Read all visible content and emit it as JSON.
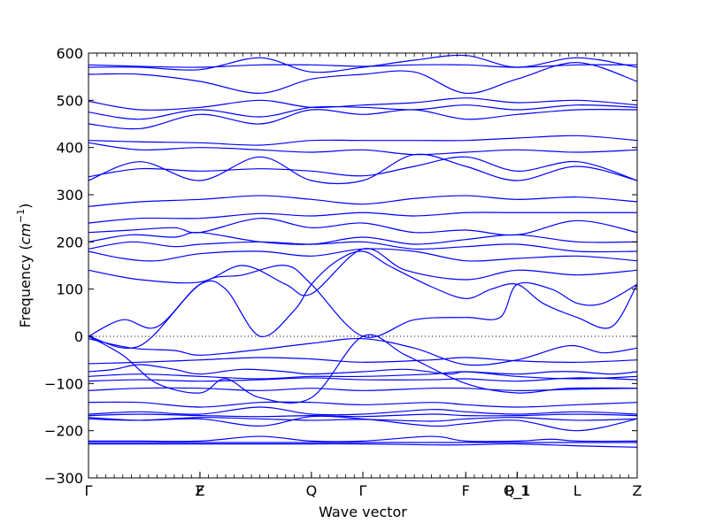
{
  "chart_data": {
    "type": "line",
    "title": "",
    "xlabel": "Wave vector",
    "ylabel_text": "Frequency (",
    "ylabel_unit": "cm",
    "ylabel_exp": "−1",
    "ylabel_close": ")",
    "ylim": [
      -300,
      600
    ],
    "yticks": [
      -300,
      -200,
      -100,
      0,
      100,
      200,
      300,
      400,
      500,
      600
    ],
    "ytick_labels": [
      "−300",
      "−200",
      "−100",
      "0",
      "100",
      "200",
      "300",
      "400",
      "500",
      "600"
    ],
    "xlim": [
      0,
      6.4
    ],
    "high_symmetry_points": [
      {
        "label": "Γ",
        "x": 0.0
      },
      {
        "label": "F",
        "x": 1.3
      },
      {
        "label": "Z",
        "x": 1.3
      },
      {
        "label": "Q",
        "x": 2.6
      },
      {
        "label": "Γ",
        "x": 3.2
      },
      {
        "label": "F",
        "x": 4.4
      },
      {
        "label": "Q_1",
        "x": 5.0
      },
      {
        "label": "P_1",
        "x": 5.0
      },
      {
        "label": "L",
        "x": 5.7
      },
      {
        "label": "Z",
        "x": 6.4
      }
    ],
    "line_color": "#0000ff",
    "zero_line": true,
    "series_description_note": "",
    "series": [
      {
        "x": [
          0,
          1.3,
          2.6,
          3.2,
          4.4,
          5.0,
          5.7,
          6.4
        ],
        "y": [
          -225,
          -225,
          -225,
          -225,
          -225,
          -225,
          -225,
          -225
        ]
      },
      {
        "x": [
          0,
          0.6,
          1.3,
          2.0,
          2.6,
          3.2,
          4.0,
          4.4,
          5.0,
          5.4,
          5.7,
          6.4
        ],
        "y": [
          -222,
          -222,
          -222,
          -212,
          -222,
          -222,
          -212,
          -222,
          -222,
          -218,
          -222,
          -222
        ]
      },
      {
        "x": [
          0,
          0.6,
          1.3,
          2.0,
          2.6,
          3.2,
          4.0,
          4.4,
          5.0,
          5.7,
          6.4
        ],
        "y": [
          -228,
          -228,
          -228,
          -228,
          -228,
          -228,
          -230,
          -230,
          -228,
          -232,
          -235
        ]
      },
      {
        "x": [
          0,
          0.6,
          1.3,
          2.0,
          2.6,
          3.2,
          4.0,
          4.4,
          5.0,
          5.7,
          6.4
        ],
        "y": [
          -172,
          -178,
          -175,
          -190,
          -170,
          -175,
          -190,
          -185,
          -178,
          -200,
          -175
        ]
      },
      {
        "x": [
          0,
          0.6,
          1.3,
          2.0,
          2.6,
          3.2,
          4.0,
          4.4,
          5.0,
          5.7,
          6.4
        ],
        "y": [
          -168,
          -165,
          -168,
          -170,
          -168,
          -170,
          -165,
          -168,
          -168,
          -165,
          -168
        ]
      },
      {
        "x": [
          0,
          0.6,
          1.3,
          2.0,
          2.6,
          3.2,
          4.0,
          4.4,
          5.0,
          5.7,
          6.4
        ],
        "y": [
          -175,
          -178,
          -172,
          -175,
          -178,
          -176,
          -180,
          -175,
          -172,
          -178,
          -175
        ]
      },
      {
        "x": [
          0,
          0.6,
          1.3,
          2.0,
          2.6,
          3.2,
          4.0,
          4.4,
          5.0,
          5.7,
          6.4
        ],
        "y": [
          -165,
          -160,
          -165,
          -150,
          -165,
          -165,
          -155,
          -160,
          -165,
          -160,
          -165
        ]
      },
      {
        "x": [
          0,
          0.6,
          1.3,
          2.0,
          2.6,
          3.2,
          4.0,
          4.4,
          5.0,
          5.7,
          6.4
        ],
        "y": [
          -140,
          -140,
          -150,
          -140,
          -140,
          -145,
          -140,
          -145,
          -150,
          -145,
          -140
        ]
      },
      {
        "x": [
          0,
          0.6,
          1.3,
          2.0,
          2.6,
          3.2,
          4.0,
          4.4,
          5.0,
          5.7,
          6.4
        ],
        "y": [
          -115,
          -110,
          -110,
          -115,
          -110,
          -115,
          -110,
          -110,
          -115,
          -112,
          -110
        ]
      },
      {
        "x": [
          0,
          0.6,
          1.3,
          2.0,
          2.6,
          3.2,
          4.0,
          4.4,
          5.0,
          5.7,
          6.4
        ],
        "y": [
          -95,
          -92,
          -95,
          -92,
          -88,
          -92,
          -92,
          -90,
          -95,
          -88,
          -92
        ]
      },
      {
        "x": [
          0,
          0.6,
          1.3,
          2.0,
          2.6,
          3.2,
          4.0,
          4.4,
          5.0,
          5.7,
          6.4
        ],
        "y": [
          -85,
          -80,
          -85,
          -90,
          -85,
          -85,
          -80,
          -75,
          -85,
          -90,
          -85
        ]
      },
      {
        "x": [
          0,
          0.3,
          0.6,
          1.0,
          1.3,
          1.8,
          2.3,
          2.6,
          3.2,
          3.7,
          4.2,
          4.4,
          5.0,
          5.4,
          5.7,
          6.1,
          6.4
        ],
        "y": [
          -75,
          -70,
          -60,
          -70,
          -80,
          -70,
          -75,
          -80,
          -75,
          -70,
          -80,
          -75,
          -80,
          -75,
          -75,
          -80,
          -75
        ]
      },
      {
        "x": [
          0,
          0.6,
          1.3,
          2.0,
          2.6,
          3.2,
          4.0,
          4.4,
          5.0,
          5.7,
          6.4
        ],
        "y": [
          -58,
          -55,
          -50,
          -45,
          -48,
          -55,
          -50,
          -45,
          -52,
          -55,
          -50
        ]
      },
      {
        "x": [
          0,
          0.5,
          1.0,
          1.3,
          1.9,
          2.6,
          3.2,
          3.8,
          4.4,
          5.0,
          5.6,
          6.0,
          6.4
        ],
        "y": [
          -5,
          -25,
          -30,
          -40,
          -30,
          -15,
          -5,
          -25,
          -60,
          -50,
          -20,
          -35,
          -25
        ]
      },
      {
        "x": [
          0,
          0.4,
          0.8,
          1.3,
          1.6,
          2.0,
          2.4,
          2.6,
          2.9,
          3.2,
          3.5,
          4.0,
          4.4,
          4.7,
          5.0,
          5.3,
          5.7,
          6.1,
          6.4
        ],
        "y": [
          0,
          35,
          20,
          110,
          100,
          0,
          55,
          110,
          160,
          180,
          150,
          105,
          80,
          100,
          110,
          70,
          40,
          20,
          110
        ]
      },
      {
        "x": [
          0,
          0.4,
          0.8,
          1.3,
          1.6,
          2.0,
          2.6,
          3.2,
          3.7,
          4.4,
          5.0,
          5.6,
          6.4
        ],
        "y": [
          0,
          -40,
          -100,
          -120,
          -90,
          -130,
          -130,
          0,
          -40,
          -100,
          -120,
          -110,
          -110
        ]
      },
      {
        "x": [
          0,
          0.6,
          1.3,
          1.8,
          2.3,
          2.6,
          3.2,
          3.8,
          4.4,
          4.8,
          5.0,
          5.4,
          5.7,
          6.0,
          6.4
        ],
        "y": [
          0,
          -20,
          110,
          130,
          150,
          110,
          0,
          35,
          40,
          40,
          110,
          100,
          70,
          70,
          110
        ]
      },
      {
        "x": [
          0,
          0.6,
          1.3,
          1.8,
          2.3,
          2.6,
          3.2,
          3.7,
          4.4,
          5.0,
          5.7,
          6.4
        ],
        "y": [
          140,
          120,
          115,
          150,
          110,
          90,
          185,
          140,
          120,
          140,
          130,
          140
        ]
      },
      {
        "x": [
          0,
          0.4,
          0.8,
          1.3,
          2.0,
          2.6,
          3.2,
          3.8,
          4.4,
          5.0,
          5.7,
          6.4
        ],
        "y": [
          180,
          165,
          160,
          175,
          180,
          170,
          185,
          180,
          160,
          165,
          170,
          160
        ]
      },
      {
        "x": [
          0,
          0.5,
          1.0,
          1.3,
          2.0,
          2.6,
          3.2,
          3.8,
          4.4,
          5.0,
          5.7,
          6.4
        ],
        "y": [
          185,
          200,
          190,
          195,
          200,
          195,
          200,
          185,
          190,
          195,
          180,
          180
        ]
      },
      {
        "x": [
          0,
          0.5,
          1.0,
          1.3,
          2.0,
          2.6,
          3.2,
          3.8,
          4.4,
          5.0,
          5.7,
          6.4
        ],
        "y": [
          200,
          215,
          210,
          220,
          200,
          195,
          210,
          195,
          205,
          215,
          200,
          200
        ]
      },
      {
        "x": [
          0,
          0.5,
          1.0,
          1.3,
          2.0,
          2.6,
          3.2,
          3.8,
          4.4,
          5.0,
          5.7,
          6.4
        ],
        "y": [
          220,
          225,
          230,
          220,
          250,
          230,
          240,
          220,
          225,
          215,
          245,
          220
        ]
      },
      {
        "x": [
          0,
          0.6,
          1.3,
          2.0,
          2.6,
          3.2,
          3.8,
          4.4,
          5.0,
          5.7,
          6.4
        ],
        "y": [
          240,
          250,
          250,
          260,
          255,
          262,
          255,
          262,
          262,
          262,
          262
        ]
      },
      {
        "x": [
          0,
          0.6,
          1.3,
          2.0,
          2.6,
          3.2,
          3.8,
          4.4,
          5.0,
          5.7,
          6.4
        ],
        "y": [
          275,
          285,
          290,
          298,
          290,
          280,
          292,
          298,
          290,
          295,
          285
        ]
      },
      {
        "x": [
          0,
          0.6,
          1.3,
          2.0,
          2.6,
          3.2,
          3.8,
          4.4,
          5.0,
          5.7,
          6.4
        ],
        "y": [
          330,
          370,
          330,
          380,
          330,
          330,
          385,
          360,
          330,
          360,
          330
        ]
      },
      {
        "x": [
          0,
          0.6,
          1.3,
          2.0,
          2.6,
          3.2,
          3.8,
          4.4,
          5.0,
          5.7,
          6.4
        ],
        "y": [
          338,
          355,
          350,
          355,
          350,
          340,
          360,
          380,
          350,
          370,
          330
        ]
      },
      {
        "x": [
          0,
          0.6,
          1.3,
          2.0,
          2.6,
          3.2,
          3.8,
          4.4,
          5.0,
          5.7,
          6.4
        ],
        "y": [
          410,
          395,
          400,
          395,
          390,
          395,
          385,
          390,
          395,
          390,
          395
        ]
      },
      {
        "x": [
          0,
          0.6,
          1.3,
          2.0,
          2.6,
          3.2,
          3.8,
          4.4,
          5.0,
          5.7,
          6.4
        ],
        "y": [
          415,
          412,
          410,
          405,
          415,
          415,
          415,
          415,
          420,
          425,
          415
        ]
      },
      {
        "x": [
          0,
          0.6,
          1.3,
          2.0,
          2.6,
          3.2,
          3.8,
          4.4,
          5.0,
          5.7,
          6.4
        ],
        "y": [
          450,
          440,
          470,
          450,
          480,
          470,
          480,
          460,
          470,
          480,
          480
        ]
      },
      {
        "x": [
          0,
          0.6,
          1.3,
          2.0,
          2.6,
          3.2,
          3.8,
          4.4,
          5.0,
          5.7,
          6.4
        ],
        "y": [
          475,
          460,
          480,
          465,
          485,
          485,
          480,
          490,
          480,
          490,
          485
        ]
      },
      {
        "x": [
          0,
          0.6,
          1.3,
          2.0,
          2.6,
          3.2,
          3.8,
          4.4,
          5.0,
          5.7,
          6.4
        ],
        "y": [
          498,
          480,
          485,
          500,
          485,
          490,
          495,
          505,
          495,
          500,
          490
        ]
      },
      {
        "x": [
          0,
          0.6,
          1.3,
          2.0,
          2.6,
          3.2,
          3.8,
          4.4,
          5.0,
          5.7,
          6.4
        ],
        "y": [
          555,
          555,
          540,
          515,
          545,
          555,
          560,
          515,
          545,
          580,
          540
        ]
      },
      {
        "x": [
          0,
          0.6,
          1.3,
          2.0,
          2.6,
          3.2,
          3.8,
          4.4,
          5.0,
          5.7,
          6.4
        ],
        "y": [
          570,
          570,
          565,
          590,
          560,
          570,
          585,
          595,
          570,
          590,
          570
        ]
      },
      {
        "x": [
          0,
          0.6,
          1.3,
          2.0,
          2.6,
          3.2,
          3.8,
          4.4,
          5.0,
          5.7,
          6.4
        ],
        "y": [
          575,
          572,
          570,
          575,
          575,
          572,
          575,
          575,
          570,
          575,
          575
        ]
      }
    ]
  }
}
